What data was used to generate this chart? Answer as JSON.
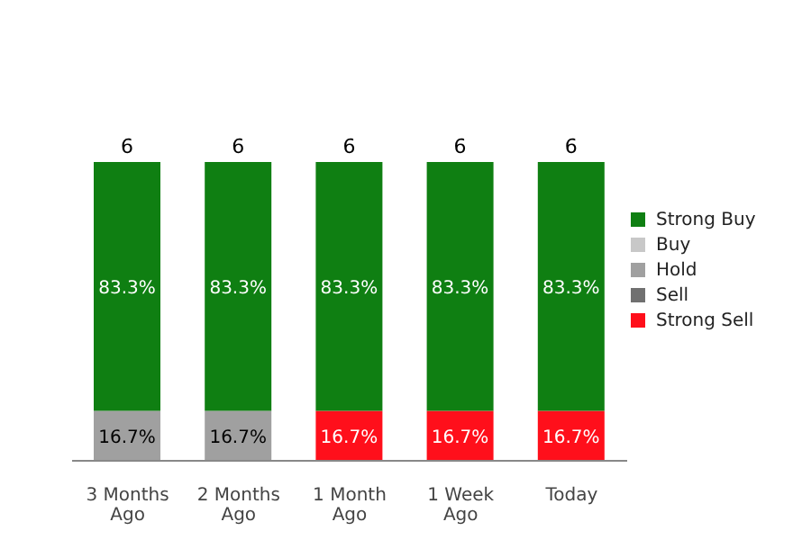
{
  "chart_data": {
    "type": "bar",
    "stacked": true,
    "categories": [
      "3 Months Ago",
      "2 Months Ago",
      "1 Month Ago",
      "1 Week Ago",
      "Today"
    ],
    "series": [
      {
        "name": "Strong Sell",
        "color": "#ff0f1b",
        "values": [
          null,
          null,
          16.7,
          16.7,
          16.7
        ],
        "value_labels": [
          null,
          null,
          "16.7%",
          "16.7%",
          "16.7%"
        ]
      },
      {
        "name": "Sell",
        "color": "#707070",
        "values": [
          null,
          null,
          null,
          null,
          null
        ]
      },
      {
        "name": "Hold",
        "color": "#a0a0a0",
        "values": [
          16.7,
          16.7,
          null,
          null,
          null
        ],
        "value_labels": [
          "16.7%",
          "16.7%",
          null,
          null,
          null
        ]
      },
      {
        "name": "Buy",
        "color": "#c8c8c8",
        "values": [
          null,
          null,
          null,
          null,
          null
        ]
      },
      {
        "name": "Strong Buy",
        "color": "#0f7f12",
        "values": [
          83.3,
          83.3,
          83.3,
          83.3,
          83.3
        ],
        "value_labels": [
          "83.3%",
          "83.3%",
          "83.3%",
          "83.3%",
          "83.3%"
        ]
      }
    ],
    "annotations": [
      {
        "text": "6",
        "x": "3 Months Ago",
        "y": 100
      },
      {
        "text": "6",
        "x": "2 Months Ago",
        "y": 100
      },
      {
        "text": "6",
        "x": "1 Month Ago",
        "y": 100
      },
      {
        "text": "6",
        "x": "1 Week Ago",
        "y": 100
      },
      {
        "text": "6",
        "x": "Today",
        "y": 100
      }
    ],
    "legend": "right",
    "grid": false
  }
}
